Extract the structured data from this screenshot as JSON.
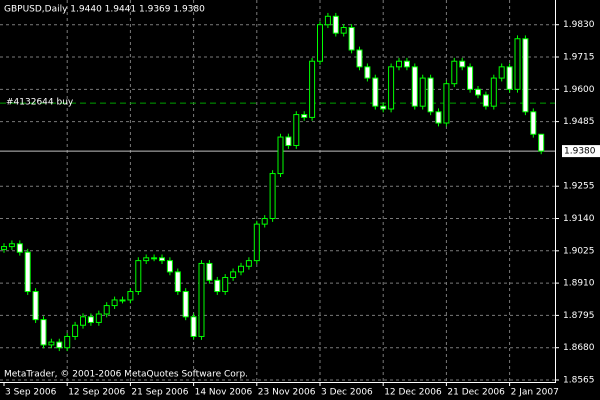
{
  "chart_data": {
    "type": "candlestick",
    "title": "GBPUSD,Daily  1.9440 1.9441 1.9369 1.9380",
    "annotation": "MetaTrader, © 2001-2006 MetaQuotes Software Corp.",
    "categories": [
      "3 Sep 2006",
      null,
      null,
      null,
      null,
      null,
      null,
      null,
      "12 Sep 2006",
      null,
      null,
      null,
      null,
      null,
      null,
      null,
      "21 Sep 2006",
      null,
      null,
      null,
      null,
      null,
      null,
      null,
      "14 Nov 2006",
      null,
      null,
      null,
      null,
      null,
      null,
      null,
      "23 Nov 2006",
      null,
      null,
      null,
      null,
      null,
      null,
      null,
      "3 Dec 2006",
      null,
      null,
      null,
      null,
      null,
      null,
      null,
      "12 Dec 2006",
      null,
      null,
      null,
      null,
      null,
      null,
      null,
      "21 Dec 2006",
      null,
      null,
      null,
      null,
      null,
      null,
      null,
      "2 Jan 2007",
      null,
      null,
      null,
      null
    ],
    "open": [
      1.903,
      1.904,
      1.905,
      1.902,
      1.888,
      1.878,
      1.869,
      1.87,
      1.868,
      1.872,
      1.876,
      1.879,
      1.877,
      1.88,
      1.883,
      1.885,
      1.885,
      1.888,
      1.899,
      1.9,
      1.9,
      1.899,
      1.895,
      1.888,
      1.879,
      1.872,
      1.898,
      1.892,
      1.888,
      1.893,
      1.895,
      1.897,
      1.899,
      1.912,
      1.914,
      1.93,
      1.943,
      1.94,
      1.951,
      1.95,
      1.97,
      1.983,
      1.986,
      1.98,
      1.982,
      1.974,
      1.968,
      1.964,
      1.954,
      1.953,
      1.968,
      1.97,
      1.968,
      1.954,
      1.964,
      1.952,
      1.948,
      1.962,
      1.97,
      1.968,
      1.96,
      1.958,
      1.954,
      1.964,
      1.968,
      1.96,
      1.978,
      1.952,
      1.944
    ],
    "high": [
      1.9052,
      1.9062,
      1.9062,
      1.9032,
      1.8892,
      1.8792,
      1.8712,
      1.8712,
      1.8732,
      1.8772,
      1.8802,
      1.8802,
      1.8812,
      1.8842,
      1.8862,
      1.8862,
      1.8892,
      1.9002,
      1.9012,
      1.9012,
      1.9012,
      1.9002,
      1.8962,
      1.8892,
      1.8802,
      1.8992,
      1.8992,
      1.8932,
      1.8942,
      1.8962,
      1.8982,
      1.9002,
      1.9132,
      1.9152,
      1.9312,
      1.9442,
      1.9442,
      1.9522,
      1.9522,
      1.9712,
      1.9842,
      1.9872,
      1.9872,
      1.9832,
      1.9832,
      1.9752,
      1.9692,
      1.9652,
      1.9552,
      1.9692,
      1.9712,
      1.9712,
      1.9692,
      1.9652,
      1.9652,
      1.9532,
      1.9632,
      1.9712,
      1.9712,
      1.9692,
      1.9612,
      1.9592,
      1.9652,
      1.9692,
      1.9692,
      1.9792,
      1.9792,
      1.9532,
      1.9441
    ],
    "low": [
      1.9018,
      1.9028,
      1.9008,
      1.8868,
      1.8768,
      1.8678,
      1.8678,
      1.8668,
      1.8668,
      1.8708,
      1.8748,
      1.8758,
      1.8758,
      1.8788,
      1.8818,
      1.8838,
      1.8838,
      1.8868,
      1.8978,
      1.8988,
      1.8978,
      1.8938,
      1.8868,
      1.8778,
      1.8708,
      1.8708,
      1.8908,
      1.8868,
      1.8868,
      1.8918,
      1.8938,
      1.8958,
      1.8978,
      1.9108,
      1.9128,
      1.9288,
      1.9388,
      1.9388,
      1.9488,
      1.9488,
      1.9688,
      1.9818,
      1.9788,
      1.9788,
      1.9728,
      1.9668,
      1.9628,
      1.9528,
      1.9518,
      1.9518,
      1.9668,
      1.9668,
      1.9528,
      1.9528,
      1.9508,
      1.9468,
      1.9468,
      1.9608,
      1.9668,
      1.9588,
      1.9568,
      1.9528,
      1.9528,
      1.9628,
      1.9588,
      1.9588,
      1.9508,
      1.9428,
      1.9369
    ],
    "close": [
      1.904,
      1.905,
      1.902,
      1.888,
      1.878,
      1.869,
      1.87,
      1.868,
      1.872,
      1.876,
      1.879,
      1.877,
      1.88,
      1.883,
      1.885,
      1.885,
      1.888,
      1.899,
      1.9,
      1.9,
      1.899,
      1.895,
      1.888,
      1.879,
      1.872,
      1.898,
      1.892,
      1.888,
      1.893,
      1.895,
      1.897,
      1.899,
      1.912,
      1.914,
      1.93,
      1.943,
      1.94,
      1.951,
      1.95,
      1.97,
      1.983,
      1.986,
      1.98,
      1.982,
      1.974,
      1.968,
      1.964,
      1.954,
      1.953,
      1.968,
      1.97,
      1.968,
      1.954,
      1.964,
      1.952,
      1.948,
      1.962,
      1.97,
      1.968,
      1.96,
      1.958,
      1.954,
      1.964,
      1.968,
      1.96,
      1.978,
      1.952,
      1.944,
      1.938
    ],
    "ylim": [
      1.8565,
      1.9918
    ],
    "yticks": [
      {
        "value": 1.983,
        "label": "1.9830"
      },
      {
        "value": 1.9715,
        "label": "1.9715"
      },
      {
        "value": 1.96,
        "label": "1.9600"
      },
      {
        "value": 1.9485,
        "label": "1.9485"
      },
      {
        "value": 1.9255,
        "label": "1.9255"
      },
      {
        "value": 1.914,
        "label": "1.9140"
      },
      {
        "value": 1.9025,
        "label": "1.9025"
      },
      {
        "value": 1.891,
        "label": "1.8910"
      },
      {
        "value": 1.8795,
        "label": "1.8795"
      },
      {
        "value": 1.868,
        "label": "1.8680"
      },
      {
        "value": 1.8565,
        "label": "1.8565"
      }
    ],
    "order_line": {
      "value": 1.9551,
      "label": "#4132644 buy",
      "color": "#00a000"
    },
    "price_line": {
      "value": 1.938,
      "label": "1.9380"
    },
    "up_color": "#000000",
    "down_color": "#ffffff",
    "wick_color": "#00ff00",
    "grid": true
  }
}
